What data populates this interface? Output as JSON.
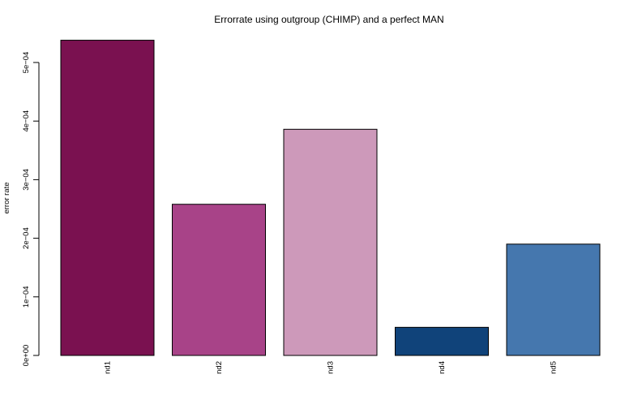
{
  "chart_data": {
    "type": "bar",
    "title": "Errorrate using outgroup (CHIMP) and a perfect MAN",
    "xlabel": "",
    "ylabel": "error rate",
    "categories": [
      "nd1",
      "nd2",
      "nd3",
      "nd4",
      "nd5"
    ],
    "values": [
      0.000538,
      0.000258,
      0.000386,
      4.8e-05,
      0.00019
    ],
    "colors": [
      "#7a1150",
      "#a84388",
      "#cd99ba",
      "#10437a",
      "#4577ae"
    ],
    "yticks": [
      0,
      0.0001,
      0.0002,
      0.0003,
      0.0004,
      0.0005
    ],
    "ytick_labels": [
      "0e+00",
      "1e−04",
      "2e−04",
      "3e−04",
      "4e−04",
      "5e−04"
    ],
    "ylim": [
      0,
      0.000538
    ],
    "grid": false,
    "legend": false
  }
}
